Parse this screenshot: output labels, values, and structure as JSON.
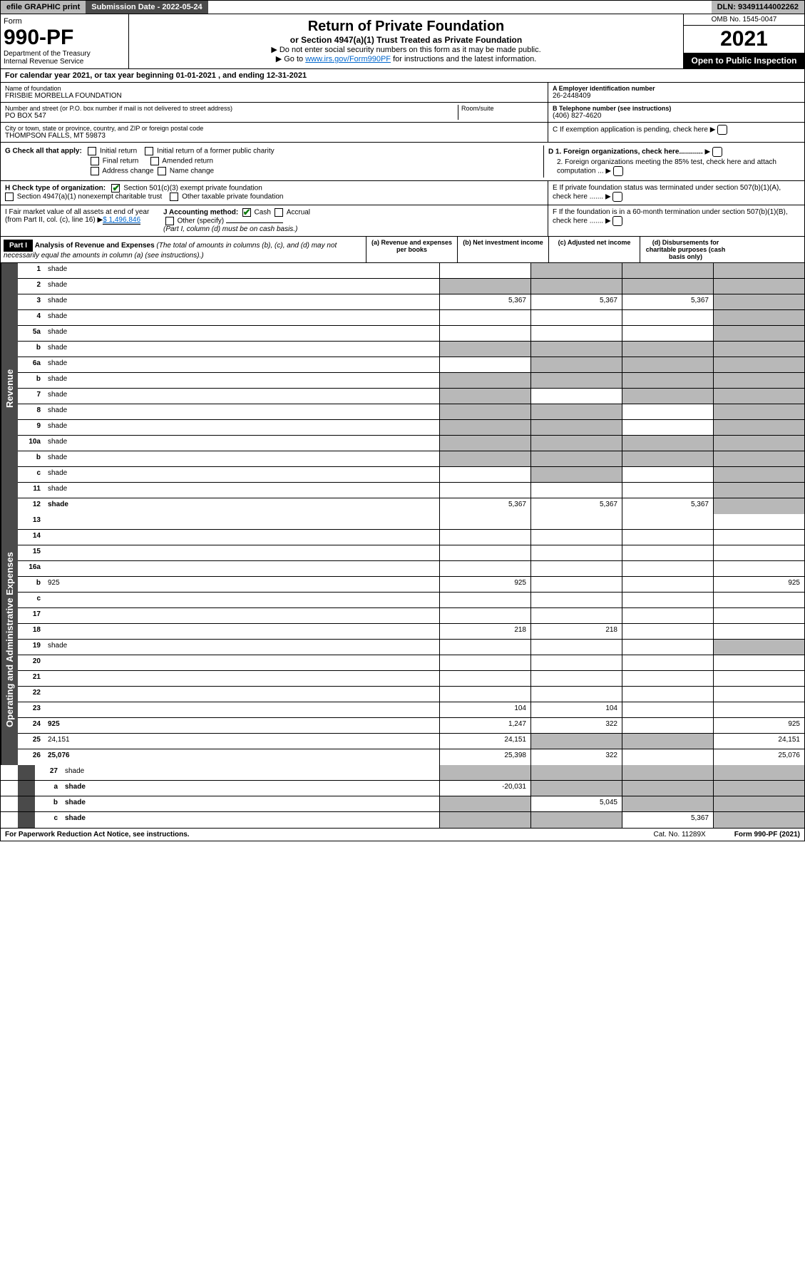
{
  "top": {
    "efile": "efile GRAPHIC print",
    "submission_label": "Submission Date - 2022-05-24",
    "dln": "DLN: 93491144002262"
  },
  "header": {
    "form_word": "Form",
    "form_no": "990-PF",
    "dept": "Department of the Treasury\nInternal Revenue Service",
    "title": "Return of Private Foundation",
    "subtitle": "or Section 4947(a)(1) Trust Treated as Private Foundation",
    "instr1": "▶ Do not enter social security numbers on this form as it may be made public.",
    "instr2_pre": "▶ Go to ",
    "instr2_link": "www.irs.gov/Form990PF",
    "instr2_post": " for instructions and the latest information.",
    "omb": "OMB No. 1545-0047",
    "year": "2021",
    "open": "Open to Public Inspection"
  },
  "cal": {
    "text": "For calendar year 2021, or tax year beginning 01-01-2021             , and ending 12-31-2021"
  },
  "entity": {
    "name_lbl": "Name of foundation",
    "name": "FRISBIE MORBELLA FOUNDATION",
    "addr_lbl": "Number and street (or P.O. box number if mail is not delivered to street address)",
    "addr": "PO BOX 547",
    "room_lbl": "Room/suite",
    "city_lbl": "City or town, state or province, country, and ZIP or foreign postal code",
    "city": "THOMPSON FALLS, MT  59873",
    "ein_lbl": "A Employer identification number",
    "ein": "26-2448409",
    "tel_lbl": "B Telephone number (see instructions)",
    "tel": "(406) 827-4620",
    "c": "C If exemption application is pending, check here",
    "d1": "D 1. Foreign organizations, check here............",
    "d2": "2. Foreign organizations meeting the 85% test, check here and attach computation ...",
    "e": "E  If private foundation status was terminated under section 507(b)(1)(A), check here .......",
    "f": "F  If the foundation is in a 60-month termination under section 507(b)(1)(B), check here .......",
    "g_lbl": "G Check all that apply:",
    "g_opts": [
      "Initial return",
      "Final return",
      "Address change",
      "Initial return of a former public charity",
      "Amended return",
      "Name change"
    ],
    "h_lbl": "H Check type of organization:",
    "h1": "Section 501(c)(3) exempt private foundation",
    "h2": "Section 4947(a)(1) nonexempt charitable trust",
    "h3": "Other taxable private foundation",
    "i_lbl": "I Fair market value of all assets at end of year (from Part II, col. (c), line 16)",
    "i_val": "$  1,496,846",
    "j_lbl": "J Accounting method:",
    "j1": "Cash",
    "j2": "Accrual",
    "j3": "Other (specify)",
    "j_note": "(Part I, column (d) must be on cash basis.)"
  },
  "part1": {
    "label": "Part I",
    "title": "Analysis of Revenue and Expenses",
    "title_note": "(The total of amounts in columns (b), (c), and (d) may not necessarily equal the amounts in column (a) (see instructions).)",
    "cols": {
      "a": "(a)   Revenue and expenses per books",
      "b": "(b)   Net investment income",
      "c": "(c)   Adjusted net income",
      "d": "(d)   Disbursements for charitable purposes (cash basis only)"
    }
  },
  "vlabels": {
    "rev": "Revenue",
    "exp": "Operating and Administrative Expenses"
  },
  "rows": [
    {
      "n": "1",
      "d": "shade",
      "a": "",
      "b": "shade",
      "c": "shade"
    },
    {
      "n": "2",
      "d": "shade",
      "a": "shade",
      "b": "shade",
      "c": "shade",
      "bold": false,
      "checkgreen": true
    },
    {
      "n": "3",
      "d": "shade",
      "a": "5,367",
      "b": "5,367",
      "c": "5,367"
    },
    {
      "n": "4",
      "d": "shade",
      "a": "",
      "b": "",
      "c": ""
    },
    {
      "n": "5a",
      "d": "shade",
      "a": "",
      "b": "",
      "c": ""
    },
    {
      "n": "b",
      "d": "shade",
      "a": "shade",
      "b": "shade",
      "c": "shade"
    },
    {
      "n": "6a",
      "d": "shade",
      "a": "",
      "b": "shade",
      "c": "shade"
    },
    {
      "n": "b",
      "d": "shade",
      "a": "shade",
      "b": "shade",
      "c": "shade"
    },
    {
      "n": "7",
      "d": "shade",
      "a": "shade",
      "b": "",
      "c": "shade"
    },
    {
      "n": "8",
      "d": "shade",
      "a": "shade",
      "b": "shade",
      "c": ""
    },
    {
      "n": "9",
      "d": "shade",
      "a": "shade",
      "b": "shade",
      "c": ""
    },
    {
      "n": "10a",
      "d": "shade",
      "a": "shade",
      "b": "shade",
      "c": "shade"
    },
    {
      "n": "b",
      "d": "shade",
      "a": "shade",
      "b": "shade",
      "c": "shade"
    },
    {
      "n": "c",
      "d": "shade",
      "a": "",
      "b": "shade",
      "c": ""
    },
    {
      "n": "11",
      "d": "shade",
      "a": "",
      "b": "",
      "c": ""
    },
    {
      "n": "12",
      "d": "shade",
      "a": "5,367",
      "b": "5,367",
      "c": "5,367",
      "bold": true
    }
  ],
  "exp_rows": [
    {
      "n": "13",
      "d": "",
      "a": "",
      "b": "",
      "c": ""
    },
    {
      "n": "14",
      "d": "",
      "a": "",
      "b": "",
      "c": ""
    },
    {
      "n": "15",
      "d": "",
      "a": "",
      "b": "",
      "c": ""
    },
    {
      "n": "16a",
      "d": "",
      "a": "",
      "b": "",
      "c": ""
    },
    {
      "n": "b",
      "d": "925",
      "a": "925",
      "b": "",
      "c": ""
    },
    {
      "n": "c",
      "d": "",
      "a": "",
      "b": "",
      "c": ""
    },
    {
      "n": "17",
      "d": "",
      "a": "",
      "b": "",
      "c": ""
    },
    {
      "n": "18",
      "d": "",
      "a": "218",
      "b": "218",
      "c": ""
    },
    {
      "n": "19",
      "d": "shade",
      "a": "",
      "b": "",
      "c": ""
    },
    {
      "n": "20",
      "d": "",
      "a": "",
      "b": "",
      "c": ""
    },
    {
      "n": "21",
      "d": "",
      "a": "",
      "b": "",
      "c": ""
    },
    {
      "n": "22",
      "d": "",
      "a": "",
      "b": "",
      "c": ""
    },
    {
      "n": "23",
      "d": "",
      "a": "104",
      "b": "104",
      "c": ""
    },
    {
      "n": "24",
      "d": "925",
      "a": "1,247",
      "b": "322",
      "c": "",
      "bold": true
    },
    {
      "n": "25",
      "d": "24,151",
      "a": "24,151",
      "b": "shade",
      "c": "shade"
    },
    {
      "n": "26",
      "d": "25,076",
      "a": "25,398",
      "b": "322",
      "c": "",
      "bold": true
    }
  ],
  "bottom_rows": [
    {
      "n": "27",
      "d": "shade",
      "a": "shade",
      "b": "shade",
      "c": "shade"
    },
    {
      "n": "a",
      "d": "shade",
      "a": "-20,031",
      "b": "shade",
      "c": "shade",
      "bold": true
    },
    {
      "n": "b",
      "d": "shade",
      "a": "shade",
      "b": "5,045",
      "c": "shade",
      "bold": true
    },
    {
      "n": "c",
      "d": "shade",
      "a": "shade",
      "b": "shade",
      "c": "5,367",
      "bold": true
    }
  ],
  "footer": {
    "left": "For Paperwork Reduction Act Notice, see instructions.",
    "mid": "Cat. No. 11289X",
    "right": "Form 990-PF (2021)"
  }
}
